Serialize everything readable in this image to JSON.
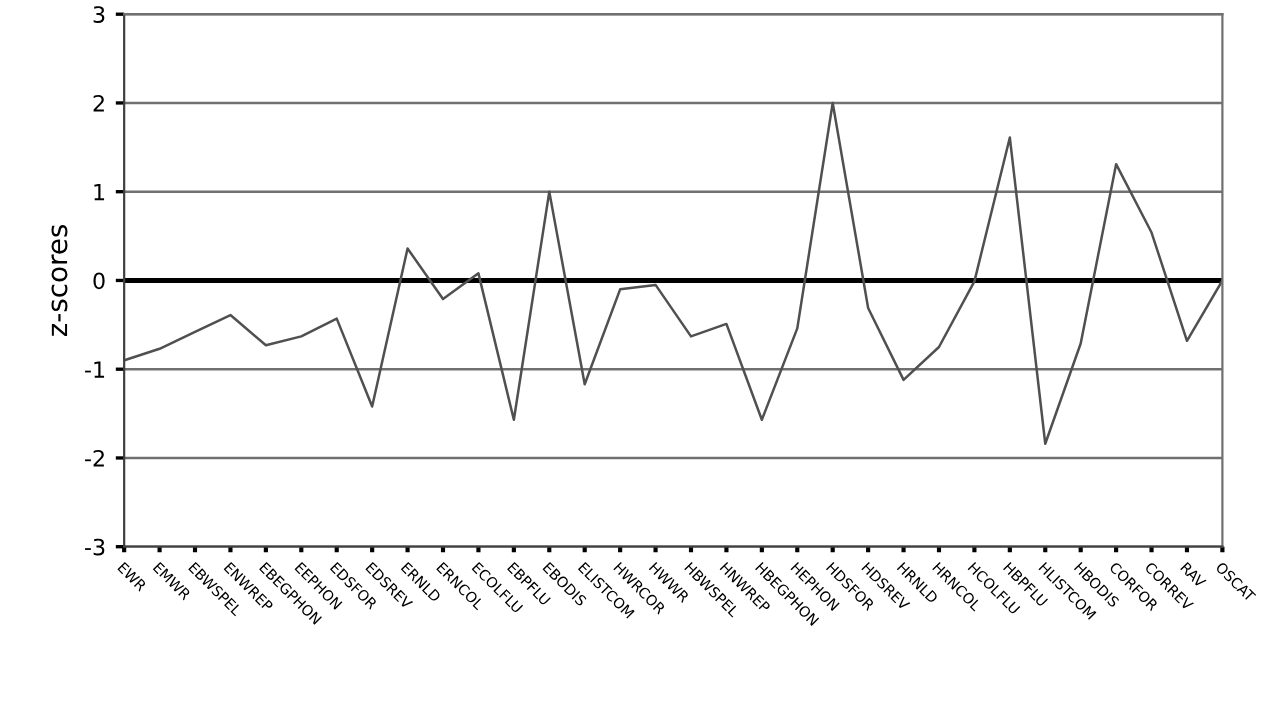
{
  "chart_data": {
    "type": "line",
    "ylabel": "z-scores",
    "categories": [
      "EWR",
      "EMWR",
      "EBWSPEL",
      "ENWREP",
      "EBEGPHON",
      "EEPHON",
      "EDSFOR",
      "EDSREV",
      "ERNLD",
      "ERNCOL",
      "ECOLFLU",
      "EBPFLU",
      "EBODIS",
      "ELISTCOM",
      "HWRCOR",
      "HWWR",
      "HBWSPEL",
      "HNWREP",
      "HBEGPHON",
      "HEPHON",
      "HDSFOR",
      "HDSREV",
      "HRNLD",
      "HRNCOL",
      "HCOLFLU",
      "HBPFLU",
      "HLISTCOM",
      "HBODIS",
      "CORFOR",
      "CORREV",
      "RAV",
      "OSCAT"
    ],
    "series": [
      {
        "color": "#505050",
        "values": [
          -0.9,
          -0.77,
          -0.58,
          -0.39,
          -0.73,
          -0.63,
          -0.43,
          -1.42,
          0.36,
          -0.21,
          0.08,
          -1.57,
          1.0,
          -1.17,
          -0.1,
          -0.05,
          -0.63,
          -0.49,
          -1.57,
          -0.54,
          2.0,
          -0.31,
          -1.12,
          -0.75,
          -0.01,
          1.61,
          -1.84,
          -0.71,
          1.31,
          0.54,
          -0.68,
          0.0
        ]
      }
    ],
    "ylim": [
      -3,
      3
    ],
    "yticks": [
      -3,
      -2,
      -1,
      0,
      1,
      2,
      3
    ],
    "grid": "y",
    "legend": false,
    "ref_lines": [
      {
        "axis": "y",
        "value": 0,
        "color": "#000000"
      }
    ]
  }
}
